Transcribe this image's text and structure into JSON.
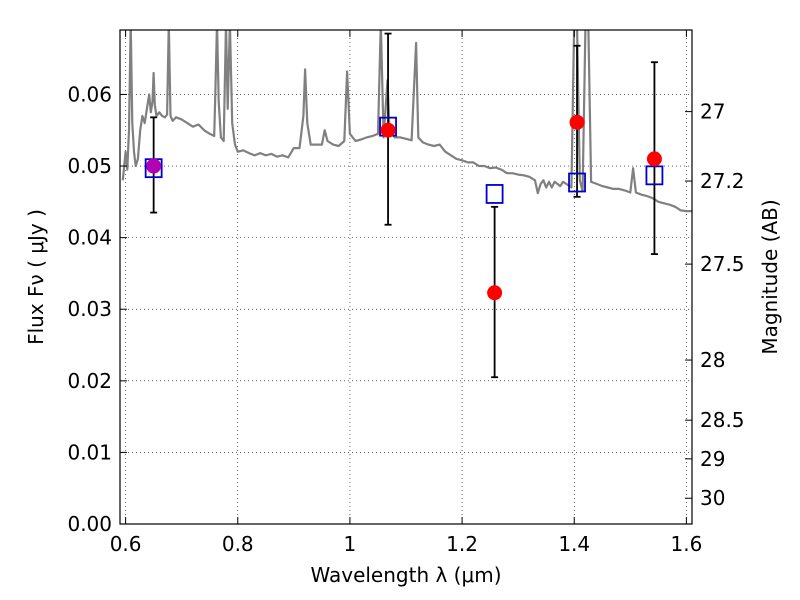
{
  "chart_data": {
    "type": "scatter",
    "title": "",
    "xlabel": "Wavelength  λ (μm)",
    "ylabel": "Flux  Fν  ( μJy )",
    "y2label": "Magnitude (AB)",
    "xlim": [
      0.59,
      1.61
    ],
    "ylim": [
      0.0,
      0.069
    ],
    "grid": true,
    "x_ticks": [
      {
        "value": 0.6,
        "label": "0.6"
      },
      {
        "value": 0.8,
        "label": "0.8"
      },
      {
        "value": 1.0,
        "label": "1"
      },
      {
        "value": 1.2,
        "label": "1.2"
      },
      {
        "value": 1.4,
        "label": "1.4"
      },
      {
        "value": 1.6,
        "label": "1.6"
      }
    ],
    "y_ticks": [
      {
        "value": 0.0,
        "label": "0.00"
      },
      {
        "value": 0.01,
        "label": "0.01"
      },
      {
        "value": 0.02,
        "label": "0.02"
      },
      {
        "value": 0.03,
        "label": "0.03"
      },
      {
        "value": 0.04,
        "label": "0.04"
      },
      {
        "value": 0.05,
        "label": "0.05"
      },
      {
        "value": 0.06,
        "label": "0.06"
      }
    ],
    "y2_ticks": [
      {
        "flux": 0.0576,
        "label": "27"
      },
      {
        "flux": 0.0479,
        "label": "27.2"
      },
      {
        "flux": 0.0363,
        "label": "27.5"
      },
      {
        "flux": 0.0229,
        "label": "28"
      },
      {
        "flux": 0.0145,
        "label": "28.5"
      },
      {
        "flux": 0.0091,
        "label": "29"
      },
      {
        "flux": 0.0036,
        "label": "30"
      }
    ],
    "series": [
      {
        "kind": "observed",
        "color": "#ff0000",
        "points": [
          {
            "x": 0.65,
            "y": 0.05,
            "yerr_low": 0.0435,
            "yerr_high": 0.0568
          },
          {
            "x": 1.068,
            "y": 0.055,
            "yerr_low": 0.0418,
            "yerr_high": 0.0685
          },
          {
            "x": 1.258,
            "y": 0.0323,
            "yerr_low": 0.0205,
            "yerr_high": 0.0443
          },
          {
            "x": 1.405,
            "y": 0.0561,
            "yerr_low": 0.0457,
            "yerr_high": 0.0668
          },
          {
            "x": 1.543,
            "y": 0.051,
            "yerr_low": 0.0377,
            "yerr_high": 0.0645
          }
        ]
      },
      {
        "kind": "model",
        "color": "#0000cc",
        "points": [
          {
            "x": 0.65,
            "y": 0.0497
          },
          {
            "x": 1.068,
            "y": 0.0555
          },
          {
            "x": 1.258,
            "y": 0.0461
          },
          {
            "x": 1.405,
            "y": 0.0477
          },
          {
            "x": 1.543,
            "y": 0.0487
          }
        ]
      },
      {
        "kind": "template-spectrum",
        "color": "#808080",
        "points": [
          [
            0.595,
            0.048
          ],
          [
            0.6,
            0.052
          ],
          [
            0.603,
            0.0495
          ],
          [
            0.606,
            0.055
          ],
          [
            0.609,
            0.07
          ],
          [
            0.612,
            0.056
          ],
          [
            0.615,
            0.052
          ],
          [
            0.618,
            0.05
          ],
          [
            0.622,
            0.051
          ],
          [
            0.626,
            0.055
          ],
          [
            0.63,
            0.057
          ],
          [
            0.634,
            0.056
          ],
          [
            0.638,
            0.058
          ],
          [
            0.642,
            0.06
          ],
          [
            0.645,
            0.0575
          ],
          [
            0.648,
            0.059
          ],
          [
            0.65,
            0.063
          ],
          [
            0.652,
            0.0585
          ],
          [
            0.655,
            0.057
          ],
          [
            0.66,
            0.0575
          ],
          [
            0.665,
            0.057
          ],
          [
            0.67,
            0.0568
          ],
          [
            0.674,
            0.0572
          ],
          [
            0.677,
            0.07
          ],
          [
            0.68,
            0.057
          ],
          [
            0.684,
            0.0563
          ],
          [
            0.69,
            0.0568
          ],
          [
            0.7,
            0.0565
          ],
          [
            0.71,
            0.056
          ],
          [
            0.72,
            0.0555
          ],
          [
            0.73,
            0.0558
          ],
          [
            0.74,
            0.055
          ],
          [
            0.75,
            0.0545
          ],
          [
            0.758,
            0.0542
          ],
          [
            0.76,
            0.06
          ],
          [
            0.763,
            0.07
          ],
          [
            0.766,
            0.059
          ],
          [
            0.77,
            0.054
          ],
          [
            0.775,
            0.0535
          ],
          [
            0.779,
            0.07
          ],
          [
            0.782,
            0.058
          ],
          [
            0.786,
            0.07
          ],
          [
            0.79,
            0.056
          ],
          [
            0.795,
            0.053
          ],
          [
            0.8,
            0.052
          ],
          [
            0.81,
            0.0522
          ],
          [
            0.82,
            0.0518
          ],
          [
            0.83,
            0.0515
          ],
          [
            0.84,
            0.0518
          ],
          [
            0.85,
            0.0515
          ],
          [
            0.86,
            0.0517
          ],
          [
            0.87,
            0.0513
          ],
          [
            0.88,
            0.0515
          ],
          [
            0.89,
            0.0512
          ],
          [
            0.9,
            0.0525
          ],
          [
            0.91,
            0.0525
          ],
          [
            0.917,
            0.057
          ],
          [
            0.92,
            0.0635
          ],
          [
            0.924,
            0.056
          ],
          [
            0.93,
            0.053
          ],
          [
            0.94,
            0.053
          ],
          [
            0.95,
            0.053
          ],
          [
            0.955,
            0.055
          ],
          [
            0.96,
            0.0535
          ],
          [
            0.97,
            0.053
          ],
          [
            0.98,
            0.0528
          ],
          [
            0.99,
            0.0535
          ],
          [
            0.995,
            0.0632
          ],
          [
            1.0,
            0.0545
          ],
          [
            1.01,
            0.0535
          ],
          [
            1.02,
            0.0537
          ],
          [
            1.03,
            0.054
          ],
          [
            1.04,
            0.0542
          ],
          [
            1.05,
            0.0545
          ],
          [
            1.055,
            0.07
          ],
          [
            1.06,
            0.054
          ],
          [
            1.067,
            0.062
          ],
          [
            1.07,
            0.056
          ],
          [
            1.075,
            0.0545
          ],
          [
            1.08,
            0.054
          ],
          [
            1.09,
            0.054
          ],
          [
            1.1,
            0.0538
          ],
          [
            1.11,
            0.0536
          ],
          [
            1.118,
            0.0672
          ],
          [
            1.122,
            0.054
          ],
          [
            1.13,
            0.0533
          ],
          [
            1.14,
            0.053
          ],
          [
            1.15,
            0.0528
          ],
          [
            1.16,
            0.053
          ],
          [
            1.17,
            0.052
          ],
          [
            1.18,
            0.0515
          ],
          [
            1.19,
            0.051
          ],
          [
            1.2,
            0.0508
          ],
          [
            1.21,
            0.0505
          ],
          [
            1.22,
            0.0505
          ],
          [
            1.23,
            0.05
          ],
          [
            1.24,
            0.05
          ],
          [
            1.25,
            0.0497
          ],
          [
            1.26,
            0.0498
          ],
          [
            1.27,
            0.0495
          ],
          [
            1.28,
            0.049
          ],
          [
            1.29,
            0.049
          ],
          [
            1.3,
            0.0488
          ],
          [
            1.31,
            0.0487
          ],
          [
            1.32,
            0.0485
          ],
          [
            1.33,
            0.048
          ],
          [
            1.335,
            0.0462
          ],
          [
            1.34,
            0.0475
          ],
          [
            1.345,
            0.048
          ],
          [
            1.35,
            0.047
          ],
          [
            1.355,
            0.0478
          ],
          [
            1.36,
            0.047
          ],
          [
            1.365,
            0.0478
          ],
          [
            1.37,
            0.0475
          ],
          [
            1.375,
            0.0472
          ],
          [
            1.38,
            0.0478
          ],
          [
            1.39,
            0.0473
          ],
          [
            1.395,
            0.047
          ],
          [
            1.4,
            0.07
          ],
          [
            1.405,
            0.07
          ],
          [
            1.41,
            0.048
          ],
          [
            1.415,
            0.0465
          ],
          [
            1.42,
            0.07
          ],
          [
            1.425,
            0.07
          ],
          [
            1.43,
            0.0478
          ],
          [
            1.44,
            0.0475
          ],
          [
            1.45,
            0.0472
          ],
          [
            1.46,
            0.047
          ],
          [
            1.47,
            0.0468
          ],
          [
            1.48,
            0.0468
          ],
          [
            1.49,
            0.0466
          ],
          [
            1.5,
            0.0463
          ],
          [
            1.505,
            0.0497
          ],
          [
            1.51,
            0.0463
          ],
          [
            1.52,
            0.046
          ],
          [
            1.53,
            0.0458
          ],
          [
            1.54,
            0.0455
          ],
          [
            1.55,
            0.045
          ],
          [
            1.56,
            0.0448
          ],
          [
            1.57,
            0.0446
          ],
          [
            1.58,
            0.0443
          ],
          [
            1.59,
            0.0438
          ],
          [
            1.6,
            0.0437
          ],
          [
            1.61,
            0.0437
          ]
        ]
      }
    ]
  }
}
